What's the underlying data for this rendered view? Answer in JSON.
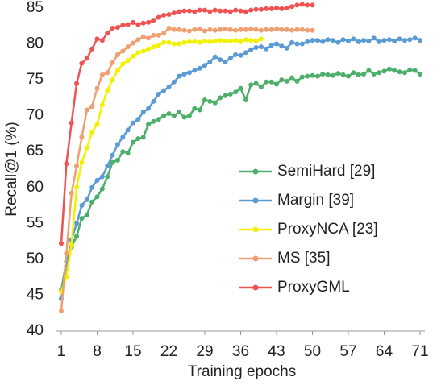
{
  "chart_data": {
    "type": "line",
    "x_label": "Training epochs",
    "y_label": "Recall@1 (%)",
    "x": [
      1,
      2,
      3,
      4,
      5,
      6,
      7,
      8,
      9,
      10,
      11,
      12,
      13,
      14,
      15,
      16,
      17,
      18,
      19,
      20,
      21,
      22,
      23,
      24,
      25,
      26,
      27,
      28,
      29,
      30,
      31,
      32,
      33,
      34,
      35,
      36,
      37,
      38,
      39,
      40,
      41,
      42,
      43,
      44,
      45,
      46,
      47,
      48,
      49,
      50,
      51,
      52,
      53,
      54,
      55,
      56,
      57,
      58,
      59,
      60,
      61,
      62,
      63,
      64,
      65,
      66,
      67,
      68,
      69,
      70,
      71
    ],
    "xlim": [
      1,
      71
    ],
    "xticks": [
      1,
      8,
      15,
      22,
      29,
      36,
      43,
      50,
      57,
      64,
      71
    ],
    "ylim": [
      40,
      85
    ],
    "yticks": [
      40,
      45,
      50,
      55,
      60,
      65,
      70,
      75,
      80,
      85
    ],
    "legend": "lower right",
    "series": [
      {
        "name": "SemiHard [29]",
        "color": "#4caf6a",
        "values": [
          45.7,
          49.7,
          51.7,
          53.2,
          55.7,
          56.2,
          58,
          58.7,
          59.8,
          61.5,
          63.5,
          63.8,
          65,
          64.8,
          66.3,
          66.8,
          67,
          68.8,
          69.2,
          69.5,
          70,
          70.3,
          70,
          70.5,
          69.8,
          70,
          71,
          70.8,
          72.2,
          72,
          71.8,
          72.5,
          72.8,
          73,
          73.3,
          73.8,
          72.2,
          74.3,
          74.5,
          74,
          74.7,
          74.7,
          74.4,
          75,
          74.8,
          75.3,
          74.8,
          75.4,
          75.5,
          75.6,
          75.5,
          75.8,
          75.7,
          75.6,
          75.9,
          75.7,
          75.5,
          76,
          75.7,
          75.8,
          76.3,
          75.8,
          76,
          76.2,
          76.5,
          76.3,
          76.1,
          76,
          76.4,
          76.3,
          75.8
        ]
      },
      {
        "name": "Margin [39]",
        "color": "#5b9bd5",
        "values": [
          44.5,
          49,
          52.7,
          55,
          57.5,
          58.3,
          60,
          61,
          61.5,
          63,
          64.5,
          66,
          67,
          68,
          69,
          69.5,
          70.5,
          71,
          72,
          73,
          73.5,
          74,
          74.7,
          75.5,
          75.8,
          76,
          76.3,
          76.6,
          77,
          77.5,
          78.2,
          77.8,
          77.5,
          78,
          78.5,
          78.4,
          78.8,
          79.2,
          79.5,
          79.6,
          79.3,
          79.8,
          80,
          79.7,
          79.4,
          80.2,
          80,
          80,
          80.3,
          80.5,
          80.5,
          80.3,
          80.6,
          80.5,
          80.2,
          80.6,
          80.4,
          80.7,
          80.3,
          80.5,
          80.4,
          80.8,
          80.3,
          80.5,
          80.6,
          80.4,
          80.7,
          80.5,
          80.6,
          80.8,
          80.5
        ]
      },
      {
        "name": "ProxyNCA [23]",
        "color": "#f2f200",
        "values": [
          45.5,
          47.5,
          52,
          60,
          63.5,
          65.5,
          67.7,
          68.8,
          71.5,
          73.5,
          75,
          76.3,
          77.2,
          77.7,
          78.3,
          78.8,
          79,
          79.3,
          79.6,
          79.8,
          80.2,
          80.2,
          80,
          80,
          80.2,
          80.3,
          80.3,
          80.2,
          80.4,
          80.3,
          80.4,
          80.5,
          80.4,
          80.4,
          80.5,
          80.3,
          80.6,
          80.5,
          80.4,
          80.7,
          null,
          null,
          null,
          null,
          null,
          null,
          null,
          null,
          null,
          null,
          null,
          null,
          null,
          null,
          null,
          null,
          null,
          null,
          null,
          null,
          null,
          null,
          null,
          null,
          null,
          null,
          null,
          null,
          null,
          null,
          null
        ]
      },
      {
        "name": "MS [35]",
        "color": "#f0a070",
        "values": [
          42.8,
          50.8,
          59.2,
          63,
          67,
          70.8,
          71.3,
          73.8,
          75.7,
          76,
          77.4,
          78.5,
          79,
          79.6,
          80.1,
          80.6,
          81,
          80.8,
          81.2,
          81.2,
          81.5,
          82.2,
          82,
          82,
          81.9,
          81.8,
          82,
          82.1,
          81.8,
          82,
          81.9,
          82,
          82.1,
          82,
          81.9,
          82,
          82,
          82.1,
          82,
          81.9,
          82,
          82,
          82.1,
          82,
          82,
          81.9,
          82,
          82,
          81.9,
          81.9,
          null,
          null,
          null,
          null,
          null,
          null,
          null,
          null,
          null,
          null,
          null,
          null,
          null,
          null,
          null,
          null,
          null,
          null,
          null,
          null,
          null
        ]
      },
      {
        "name": "ProxyGML",
        "color": "#f05252",
        "values": [
          52.2,
          63.3,
          69,
          74.5,
          77.3,
          78,
          79.3,
          80.7,
          80.5,
          81.5,
          82.2,
          82.3,
          82.6,
          82.7,
          83,
          82.7,
          82.9,
          83,
          83.3,
          83.7,
          84,
          84.1,
          84.3,
          84.5,
          84.6,
          84.6,
          84.5,
          84.7,
          84.7,
          84.5,
          84.7,
          84.6,
          84.6,
          84.5,
          84.7,
          84.6,
          84.5,
          84.7,
          84.8,
          84.8,
          84.9,
          84.9,
          85,
          84.9,
          85,
          85.2,
          85.4,
          85.5,
          85.4,
          85.4,
          null,
          null,
          null,
          null,
          null,
          null,
          null,
          null,
          null,
          null,
          null,
          null,
          null,
          null,
          null,
          null,
          null,
          null,
          null,
          null,
          null
        ]
      }
    ]
  }
}
